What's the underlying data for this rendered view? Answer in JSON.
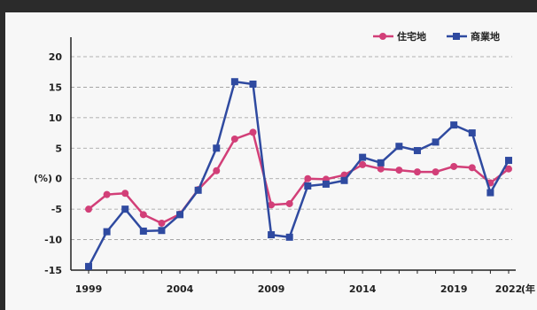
{
  "chart_data": {
    "type": "line",
    "ylabel": "(%)",
    "x_unit_label": "(年",
    "ylim": [
      -15,
      20
    ],
    "yticks": [
      20,
      15,
      10,
      5,
      0,
      -5,
      -10,
      -15
    ],
    "xticks": [
      "1999",
      "2004",
      "2009",
      "2014",
      "2019",
      "2022"
    ],
    "grid": true,
    "legend_position": "top-right",
    "x": [
      1999,
      2000,
      2001,
      2002,
      2003,
      2004,
      2005,
      2006,
      2007,
      2008,
      2009,
      2010,
      2011,
      2012,
      2013,
      2014,
      2015,
      2016,
      2017,
      2018,
      2019,
      2020,
      2021,
      2022
    ],
    "series": [
      {
        "name": "住宅地",
        "color": "#d23f78",
        "marker": "circle",
        "values": [
          -5.0,
          -2.6,
          -2.4,
          -5.9,
          -7.3,
          -5.8,
          -1.8,
          1.3,
          6.5,
          7.6,
          -4.3,
          -4.1,
          0.0,
          -0.1,
          0.6,
          2.3,
          1.6,
          1.4,
          1.1,
          1.1,
          2.0,
          1.8,
          -0.7,
          1.6
        ]
      },
      {
        "name": "商業地",
        "color": "#2f4aa0",
        "marker": "square",
        "values": [
          -14.4,
          -8.7,
          -5.0,
          -8.6,
          -8.5,
          -5.9,
          -1.9,
          5.0,
          15.9,
          15.5,
          -9.2,
          -9.6,
          -1.2,
          -0.9,
          -0.3,
          3.5,
          2.6,
          5.3,
          4.6,
          6.0,
          8.8,
          7.5,
          -2.3,
          3.0
        ]
      }
    ]
  }
}
